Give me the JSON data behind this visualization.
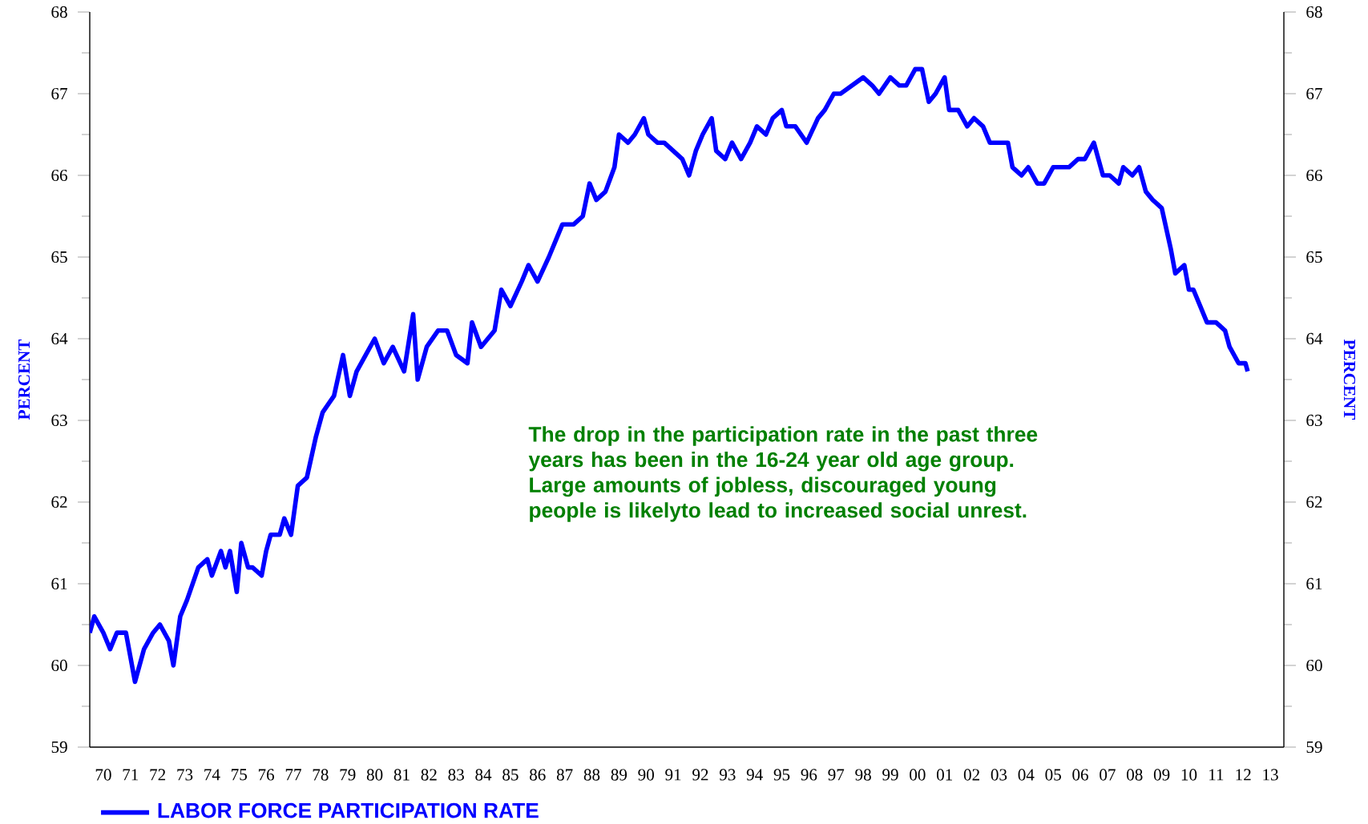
{
  "chart_data": {
    "type": "line",
    "ylabel": "PERCENT",
    "y2label": "PERCENT",
    "annotations": [
      "The drop in the participation rate in the past three years has been in the 16-24 year old age group. Large amounts of jobless, discouraged young people is likelyto lead to increased social unrest."
    ],
    "x": [
      "1970-01",
      "1970-03",
      "1970-07",
      "1970-10",
      "1971-01",
      "1971-05",
      "1971-07",
      "1971-09",
      "1972-01",
      "1972-05",
      "1972-08",
      "1972-12",
      "1973-02",
      "1973-05",
      "1973-08",
      "1974-01",
      "1974-05",
      "1974-07",
      "1974-11",
      "1975-01",
      "1975-03",
      "1975-06",
      "1975-08",
      "1975-11",
      "1976-01",
      "1976-05",
      "1976-07",
      "1976-09",
      "1977-01",
      "1977-03",
      "1977-06",
      "1977-09",
      "1978-01",
      "1978-05",
      "1978-08",
      "1979-01",
      "1979-05",
      "1979-08",
      "1979-11",
      "1980-03",
      "1980-07",
      "1980-11",
      "1981-03",
      "1981-08",
      "1981-12",
      "1982-02",
      "1982-06",
      "1982-11",
      "1983-03",
      "1983-07",
      "1983-12",
      "1984-02",
      "1984-06",
      "1984-12",
      "1985-03",
      "1985-07",
      "1985-12",
      "1986-03",
      "1986-07",
      "1986-12",
      "1987-03",
      "1987-06",
      "1987-11",
      "1988-03",
      "1988-06",
      "1988-09",
      "1989-01",
      "1989-05",
      "1989-07",
      "1989-11",
      "1990-02",
      "1990-06",
      "1990-08",
      "1990-12",
      "1991-03",
      "1991-07",
      "1991-11",
      "1992-02",
      "1992-05",
      "1992-08",
      "1992-12",
      "1993-02",
      "1993-06",
      "1993-09",
      "1994-01",
      "1994-05",
      "1994-08",
      "1994-12",
      "1995-03",
      "1995-07",
      "1995-09",
      "1996-01",
      "1996-06",
      "1996-11",
      "1997-02",
      "1997-06",
      "1997-09",
      "1998-02",
      "1998-07",
      "1998-11",
      "1999-02",
      "1999-07",
      "1999-11",
      "2000-02",
      "2000-06",
      "2000-09",
      "2000-12",
      "2001-03",
      "2001-07",
      "2001-09",
      "2002-01",
      "2002-05",
      "2002-08",
      "2002-12",
      "2003-03",
      "2003-07",
      "2003-11",
      "2004-01",
      "2004-05",
      "2004-08",
      "2004-12",
      "2005-03",
      "2005-07",
      "2005-11",
      "2006-02",
      "2006-06",
      "2006-09",
      "2007-01",
      "2007-05",
      "2007-08",
      "2007-12",
      "2008-02",
      "2008-06",
      "2008-09",
      "2008-12",
      "2009-03",
      "2009-07",
      "2009-11",
      "2010-01",
      "2010-05",
      "2010-07",
      "2010-09",
      "2010-12",
      "2011-03",
      "2011-07",
      "2011-11",
      "2012-01",
      "2012-05",
      "2012-08",
      "2012-09"
    ],
    "series": [
      {
        "name": "LABOR FORCE PARTICIPATION RATE",
        "color": "#0000ff",
        "values": [
          60.4,
          60.6,
          60.4,
          60.2,
          60.4,
          60.4,
          60.1,
          59.8,
          60.2,
          60.4,
          60.5,
          60.3,
          60.0,
          60.6,
          60.8,
          61.2,
          61.3,
          61.1,
          61.4,
          61.2,
          61.4,
          60.9,
          61.5,
          61.2,
          61.2,
          61.1,
          61.4,
          61.6,
          61.6,
          61.8,
          61.6,
          62.2,
          62.3,
          62.8,
          63.1,
          63.3,
          63.8,
          63.3,
          63.6,
          63.8,
          64.0,
          63.7,
          63.9,
          63.6,
          64.3,
          63.5,
          63.9,
          64.1,
          64.1,
          63.8,
          63.7,
          64.2,
          63.9,
          64.1,
          64.6,
          64.4,
          64.7,
          64.9,
          64.7,
          65.0,
          65.2,
          65.4,
          65.4,
          65.5,
          65.9,
          65.7,
          65.8,
          66.1,
          66.5,
          66.4,
          66.5,
          66.7,
          66.5,
          66.4,
          66.4,
          66.3,
          66.2,
          66.0,
          66.3,
          66.5,
          66.7,
          66.3,
          66.2,
          66.4,
          66.2,
          66.4,
          66.6,
          66.5,
          66.7,
          66.8,
          66.6,
          66.6,
          66.4,
          66.7,
          66.8,
          67.0,
          67.0,
          67.1,
          67.2,
          67.1,
          67.0,
          67.2,
          67.1,
          67.1,
          67.3,
          67.3,
          66.9,
          67.0,
          67.2,
          66.8,
          66.8,
          66.6,
          66.7,
          66.6,
          66.4,
          66.4,
          66.4,
          66.1,
          66.0,
          66.1,
          65.9,
          65.9,
          66.1,
          66.1,
          66.1,
          66.2,
          66.2,
          66.4,
          66.0,
          66.0,
          65.9,
          66.1,
          66.0,
          66.1,
          65.8,
          65.7,
          65.6,
          65.1,
          64.8,
          64.9,
          64.6,
          64.6,
          64.4,
          64.2,
          64.2,
          64.1,
          63.9,
          63.7,
          63.7,
          63.6
        ]
      }
    ],
    "xlim": [
      "1970-01",
      "2014-01"
    ],
    "xticks": [
      {
        "value": "1970-07",
        "label": "70"
      },
      {
        "value": "1971-07",
        "label": "71"
      },
      {
        "value": "1972-07",
        "label": "72"
      },
      {
        "value": "1973-07",
        "label": "73"
      },
      {
        "value": "1974-07",
        "label": "74"
      },
      {
        "value": "1975-07",
        "label": "75"
      },
      {
        "value": "1976-07",
        "label": "76"
      },
      {
        "value": "1977-07",
        "label": "77"
      },
      {
        "value": "1978-07",
        "label": "78"
      },
      {
        "value": "1979-07",
        "label": "79"
      },
      {
        "value": "1980-07",
        "label": "80"
      },
      {
        "value": "1981-07",
        "label": "81"
      },
      {
        "value": "1982-07",
        "label": "82"
      },
      {
        "value": "1983-07",
        "label": "83"
      },
      {
        "value": "1984-07",
        "label": "84"
      },
      {
        "value": "1985-07",
        "label": "85"
      },
      {
        "value": "1986-07",
        "label": "86"
      },
      {
        "value": "1987-07",
        "label": "87"
      },
      {
        "value": "1988-07",
        "label": "88"
      },
      {
        "value": "1989-07",
        "label": "89"
      },
      {
        "value": "1990-07",
        "label": "90"
      },
      {
        "value": "1991-07",
        "label": "91"
      },
      {
        "value": "1992-07",
        "label": "92"
      },
      {
        "value": "1993-07",
        "label": "93"
      },
      {
        "value": "1994-07",
        "label": "94"
      },
      {
        "value": "1995-07",
        "label": "95"
      },
      {
        "value": "1996-07",
        "label": "96"
      },
      {
        "value": "1997-07",
        "label": "97"
      },
      {
        "value": "1998-07",
        "label": "98"
      },
      {
        "value": "1999-07",
        "label": "99"
      },
      {
        "value": "2000-07",
        "label": "00"
      },
      {
        "value": "2001-07",
        "label": "01"
      },
      {
        "value": "2002-07",
        "label": "02"
      },
      {
        "value": "2003-07",
        "label": "03"
      },
      {
        "value": "2004-07",
        "label": "04"
      },
      {
        "value": "2005-07",
        "label": "05"
      },
      {
        "value": "2006-07",
        "label": "06"
      },
      {
        "value": "2007-07",
        "label": "07"
      },
      {
        "value": "2008-07",
        "label": "08"
      },
      {
        "value": "2009-07",
        "label": "09"
      },
      {
        "value": "2010-07",
        "label": "10"
      },
      {
        "value": "2011-07",
        "label": "11"
      },
      {
        "value": "2012-07",
        "label": "12"
      },
      {
        "value": "2013-07",
        "label": "13"
      }
    ],
    "ylim": [
      59,
      68
    ],
    "yticks": [
      59,
      60,
      61,
      62,
      63,
      64,
      65,
      66,
      67,
      68
    ],
    "y2lim": [
      59,
      68
    ],
    "y2ticks": [
      59,
      60,
      61,
      62,
      63,
      64,
      65,
      66,
      67,
      68
    ],
    "legend": "bottom left",
    "grid": false,
    "marker": "none",
    "line_style": "solid"
  }
}
